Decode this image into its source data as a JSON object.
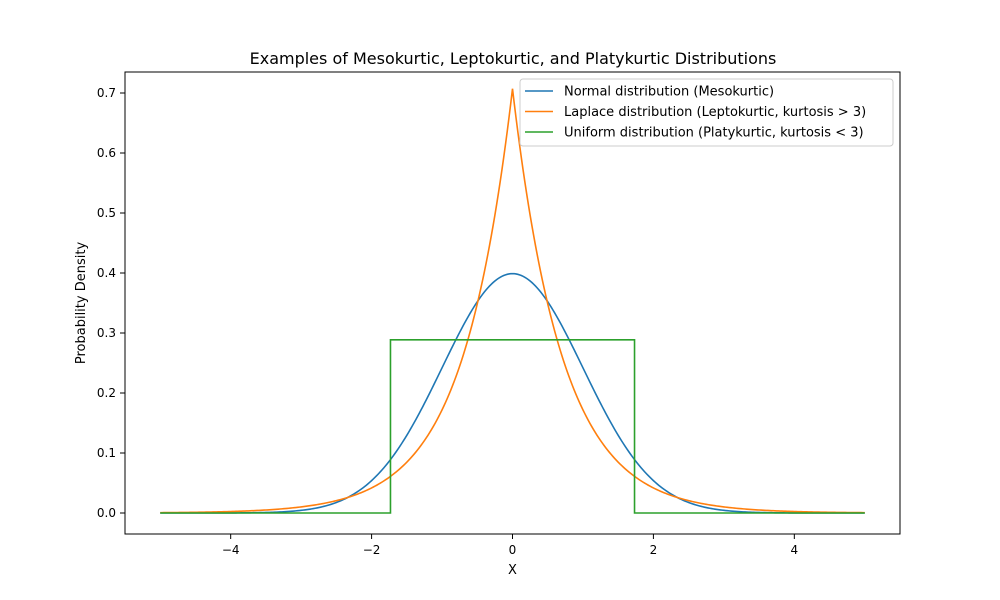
{
  "chart_data": {
    "type": "line",
    "title": "Examples of Mesokurtic, Leptokurtic, and Platykurtic Distributions",
    "xlabel": "X",
    "ylabel": "Probability Density",
    "xlim": [
      -5.5,
      5.5
    ],
    "ylim": [
      -0.035,
      0.735
    ],
    "xticks": [
      -4,
      -2,
      0,
      2,
      4
    ],
    "xtick_labels": [
      "−4",
      "−2",
      "0",
      "2",
      "4"
    ],
    "yticks": [
      0.0,
      0.1,
      0.2,
      0.3,
      0.4,
      0.5,
      0.6,
      0.7
    ],
    "ytick_labels": [
      "0.0",
      "0.1",
      "0.2",
      "0.3",
      "0.4",
      "0.5",
      "0.6",
      "0.7"
    ],
    "grid": false,
    "legend_position": "top-right",
    "series": [
      {
        "name": "Normal distribution (Mesokurtic)",
        "color": "#1f77b4",
        "x": [
          -5.0,
          -4.5,
          -4.0,
          -3.5,
          -3.0,
          -2.5,
          -2.0,
          -1.75,
          -1.5,
          -1.25,
          -1.0,
          -0.75,
          -0.5,
          -0.25,
          0.0,
          0.25,
          0.5,
          0.75,
          1.0,
          1.25,
          1.5,
          1.75,
          2.0,
          2.5,
          3.0,
          3.5,
          4.0,
          4.5,
          5.0
        ],
        "y": [
          0.0,
          0.0,
          0.0001,
          0.0009,
          0.0044,
          0.0175,
          0.054,
          0.0863,
          0.1295,
          0.1826,
          0.242,
          0.3011,
          0.3521,
          0.3867,
          0.3989,
          0.3867,
          0.3521,
          0.3011,
          0.242,
          0.1826,
          0.1295,
          0.0863,
          0.054,
          0.0175,
          0.0044,
          0.0009,
          0.0001,
          0.0,
          0.0
        ]
      },
      {
        "name": "Laplace distribution (Leptokurtic, kurtosis > 3)",
        "color": "#ff7f0e",
        "x": [
          -5.0,
          -4.5,
          -4.0,
          -3.5,
          -3.0,
          -2.5,
          -2.0,
          -1.5,
          -1.0,
          -0.75,
          -0.5,
          -0.25,
          0.0,
          0.25,
          0.5,
          0.75,
          1.0,
          1.5,
          2.0,
          2.5,
          3.0,
          3.5,
          4.0,
          4.5,
          5.0
        ],
        "y": [
          0.0006,
          0.0012,
          0.0025,
          0.005,
          0.0101,
          0.0205,
          0.0419,
          0.0851,
          0.172,
          0.2444,
          0.3474,
          0.4937,
          0.7018,
          0.4937,
          0.3474,
          0.2444,
          0.172,
          0.0851,
          0.0419,
          0.0205,
          0.0101,
          0.005,
          0.0025,
          0.0012,
          0.0006
        ]
      },
      {
        "name": "Uniform distribution (Platykurtic, kurtosis < 3)",
        "color": "#2ca02c",
        "x": [
          -5.0,
          -1.732,
          -1.732,
          1.732,
          1.732,
          5.0
        ],
        "y": [
          0.0,
          0.0,
          0.2887,
          0.2887,
          0.0,
          0.0
        ]
      }
    ]
  }
}
